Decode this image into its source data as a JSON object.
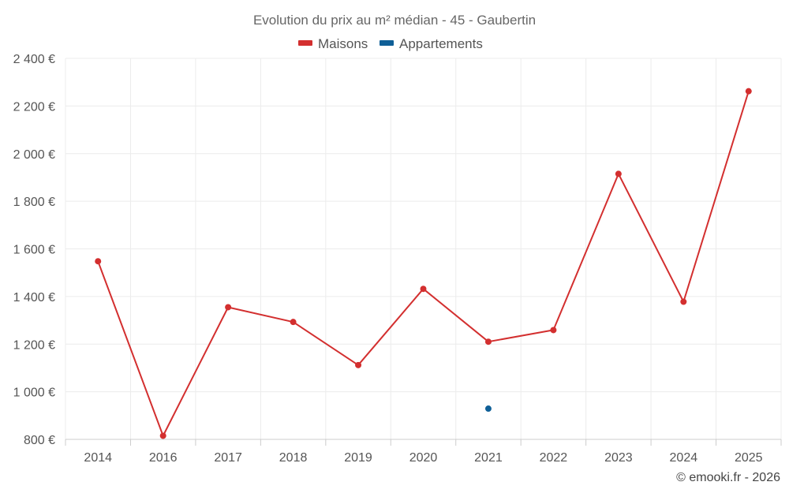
{
  "chart_data": {
    "type": "line",
    "title": "Evolution du prix au m² médian - 45 - Gaubertin",
    "categories": [
      "2014",
      "2016",
      "2017",
      "2018",
      "2019",
      "2020",
      "2021",
      "2022",
      "2023",
      "2024",
      "2025"
    ],
    "ylim": [
      800,
      2400
    ],
    "yticks": [
      800,
      1000,
      1200,
      1400,
      1600,
      1800,
      2000,
      2200,
      2400
    ],
    "ytick_labels": [
      "800 €",
      "1 000 €",
      "1 200 €",
      "1 400 €",
      "1 600 €",
      "1 800 €",
      "2 000 €",
      "2 200 €",
      "2 400 €"
    ],
    "series": [
      {
        "name": "Maisons",
        "color": "#d32f2f",
        "values": [
          1548,
          815,
          1355,
          1293,
          1112,
          1432,
          1210,
          1259,
          1915,
          1378,
          2262
        ]
      },
      {
        "name": "Appartements",
        "color": "#0f5f97",
        "values": [
          null,
          null,
          null,
          null,
          null,
          null,
          929,
          null,
          null,
          null,
          null
        ]
      }
    ],
    "grid": true,
    "legend": "top-center"
  },
  "credit": "© emooki.fr - 2026"
}
